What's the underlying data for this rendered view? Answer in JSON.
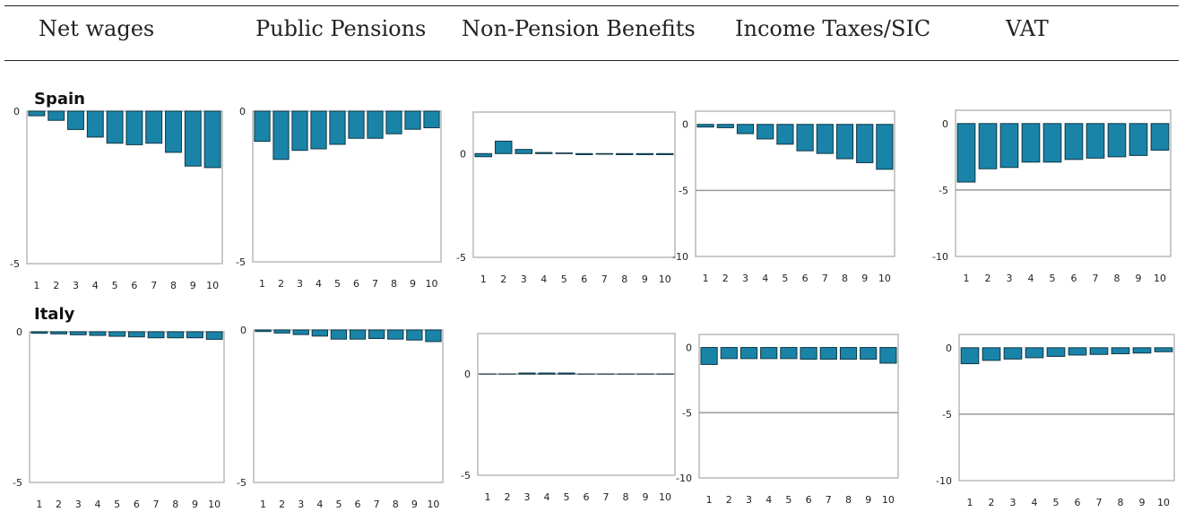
{
  "columns": [
    "Net wages",
    "Public Pensions",
    "Non-Pension Benefits",
    "Income Taxes/SIC",
    "VAT"
  ],
  "rows": [
    "Spain",
    "Italy"
  ],
  "colors": {
    "bar": "#1a84a8",
    "bar_edge": "#0d3646",
    "frame": "#b8b8b8",
    "gridline": "#999999"
  },
  "chart_data": [
    {
      "type": "bar",
      "title": "Spain – Net wages",
      "categories": [
        "1",
        "2",
        "3",
        "4",
        "5",
        "6",
        "7",
        "8",
        "9",
        "10"
      ],
      "values": [
        -0.15,
        -0.3,
        -0.6,
        -0.85,
        -1.05,
        -1.1,
        -1.05,
        -1.35,
        -1.8,
        -1.85
      ],
      "ylim": [
        -5,
        0
      ],
      "yticks": [
        0,
        -5
      ],
      "gridlines": []
    },
    {
      "type": "bar",
      "title": "Spain – Public Pensions",
      "categories": [
        "1",
        "2",
        "3",
        "4",
        "5",
        "6",
        "7",
        "8",
        "9",
        "10"
      ],
      "values": [
        -1.0,
        -1.6,
        -1.3,
        -1.25,
        -1.1,
        -0.9,
        -0.9,
        -0.75,
        -0.6,
        -0.55
      ],
      "ylim": [
        -5,
        0
      ],
      "yticks": [
        0,
        -5
      ],
      "gridlines": []
    },
    {
      "type": "bar",
      "title": "Spain – Non-Pension Benefits",
      "categories": [
        "1",
        "2",
        "3",
        "4",
        "5",
        "6",
        "7",
        "8",
        "9",
        "10"
      ],
      "values": [
        -0.15,
        0.6,
        0.2,
        0.05,
        0.03,
        -0.05,
        -0.03,
        -0.05,
        -0.05,
        -0.05
      ],
      "ylim": [
        -5,
        2
      ],
      "yticks": [
        0,
        -5
      ],
      "gridlines": []
    },
    {
      "type": "bar",
      "title": "Spain – Income Taxes/SIC",
      "categories": [
        "1",
        "2",
        "3",
        "4",
        "5",
        "6",
        "7",
        "8",
        "9",
        "10"
      ],
      "values": [
        -0.2,
        -0.25,
        -0.7,
        -1.1,
        -1.5,
        -2.0,
        -2.2,
        -2.6,
        -2.9,
        -3.4
      ],
      "ylim": [
        -10,
        1
      ],
      "yticks": [
        0,
        -5,
        -10
      ],
      "gridlines": [
        -5
      ]
    },
    {
      "type": "bar",
      "title": "Spain – VAT",
      "categories": [
        "1",
        "2",
        "3",
        "4",
        "5",
        "6",
        "7",
        "8",
        "9",
        "10"
      ],
      "values": [
        -4.4,
        -3.4,
        -3.3,
        -2.9,
        -2.9,
        -2.7,
        -2.6,
        -2.5,
        -2.4,
        -2.0
      ],
      "ylim": [
        -10,
        1
      ],
      "yticks": [
        0,
        -5,
        -10
      ],
      "gridlines": [
        -5
      ]
    },
    {
      "type": "bar",
      "title": "Italy – Net wages",
      "categories": [
        "1",
        "2",
        "3",
        "4",
        "5",
        "6",
        "7",
        "8",
        "9",
        "10"
      ],
      "values": [
        -0.05,
        -0.07,
        -0.1,
        -0.12,
        -0.15,
        -0.17,
        -0.2,
        -0.2,
        -0.2,
        -0.25
      ],
      "ylim": [
        -5,
        0
      ],
      "yticks": [
        0,
        -5
      ],
      "gridlines": []
    },
    {
      "type": "bar",
      "title": "Italy – Public Pensions",
      "categories": [
        "1",
        "2",
        "3",
        "4",
        "5",
        "6",
        "7",
        "8",
        "9",
        "10"
      ],
      "values": [
        -0.05,
        -0.1,
        -0.15,
        -0.2,
        -0.3,
        -0.3,
        -0.28,
        -0.3,
        -0.33,
        -0.38
      ],
      "ylim": [
        -5,
        0
      ],
      "yticks": [
        0,
        -5
      ],
      "gridlines": []
    },
    {
      "type": "bar",
      "title": "Italy – Non-Pension Benefits",
      "categories": [
        "1",
        "2",
        "3",
        "4",
        "5",
        "6",
        "7",
        "8",
        "9",
        "10"
      ],
      "values": [
        0,
        0,
        0.05,
        0.05,
        0.05,
        0,
        0,
        0,
        0,
        0
      ],
      "ylim": [
        -5,
        2
      ],
      "yticks": [
        0,
        -5
      ],
      "gridlines": [
        0
      ]
    },
    {
      "type": "bar",
      "title": "Italy – Income Taxes/SIC",
      "categories": [
        "1",
        "2",
        "3",
        "4",
        "5",
        "6",
        "7",
        "8",
        "9",
        "10"
      ],
      "values": [
        -1.3,
        -0.85,
        -0.85,
        -0.85,
        -0.85,
        -0.9,
        -0.9,
        -0.9,
        -0.9,
        -1.2
      ],
      "ylim": [
        -10,
        1
      ],
      "yticks": [
        0,
        -5,
        -10
      ],
      "gridlines": [
        -5
      ]
    },
    {
      "type": "bar",
      "title": "Italy – VAT",
      "categories": [
        "1",
        "2",
        "3",
        "4",
        "5",
        "6",
        "7",
        "8",
        "9",
        "10"
      ],
      "values": [
        -1.2,
        -0.95,
        -0.85,
        -0.75,
        -0.65,
        -0.55,
        -0.5,
        -0.45,
        -0.4,
        -0.3
      ],
      "ylim": [
        -10,
        1
      ],
      "yticks": [
        0,
        -5,
        -10
      ],
      "gridlines": [
        -5
      ]
    }
  ]
}
